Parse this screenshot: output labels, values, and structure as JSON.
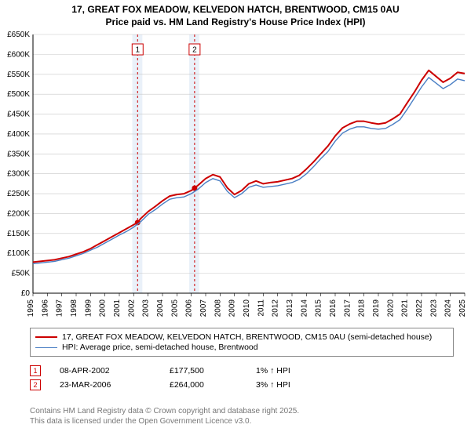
{
  "title_line1": "17, GREAT FOX MEADOW, KELVEDON HATCH, BRENTWOOD, CM15 0AU",
  "title_line2": "Price paid vs. HM Land Registry's House Price Index (HPI)",
  "chart": {
    "type": "line",
    "background_color": "#ffffff",
    "grid_color": "#c8c8c8",
    "axis_color": "#000000",
    "plot_bg_band_color": "#eaf1f9",
    "x": {
      "min": 1995,
      "max": 2025,
      "ticks": [
        1995,
        1996,
        1997,
        1998,
        1999,
        2000,
        2001,
        2002,
        2003,
        2004,
        2005,
        2006,
        2007,
        2008,
        2009,
        2010,
        2011,
        2012,
        2013,
        2014,
        2015,
        2016,
        2017,
        2018,
        2019,
        2020,
        2021,
        2022,
        2023,
        2024,
        2025
      ]
    },
    "y": {
      "min": 0,
      "max": 650000,
      "ticks": [
        0,
        50000,
        100000,
        150000,
        200000,
        250000,
        300000,
        350000,
        400000,
        450000,
        500000,
        550000,
        600000,
        650000
      ],
      "labels": [
        "£0",
        "£50K",
        "£100K",
        "£150K",
        "£200K",
        "£250K",
        "£300K",
        "£350K",
        "£400K",
        "£450K",
        "£500K",
        "£550K",
        "£600K",
        "£650K"
      ]
    },
    "series": [
      {
        "name": "17, GREAT FOX MEADOW, KELVEDON HATCH, BRENTWOOD, CM15 0AU (semi-detached house)",
        "color": "#cc0000",
        "width": 2,
        "points": [
          [
            1995.0,
            78000
          ],
          [
            1995.5,
            80000
          ],
          [
            1996.0,
            82000
          ],
          [
            1996.5,
            84000
          ],
          [
            1997.0,
            88000
          ],
          [
            1997.5,
            92000
          ],
          [
            1998.0,
            98000
          ],
          [
            1998.5,
            104000
          ],
          [
            1999.0,
            112000
          ],
          [
            1999.5,
            122000
          ],
          [
            2000.0,
            132000
          ],
          [
            2000.5,
            142000
          ],
          [
            2001.0,
            152000
          ],
          [
            2001.5,
            162000
          ],
          [
            2002.0,
            172000
          ],
          [
            2002.27,
            177500
          ],
          [
            2002.5,
            188000
          ],
          [
            2003.0,
            205000
          ],
          [
            2003.5,
            218000
          ],
          [
            2004.0,
            232000
          ],
          [
            2004.5,
            244000
          ],
          [
            2005.0,
            248000
          ],
          [
            2005.5,
            250000
          ],
          [
            2006.0,
            258000
          ],
          [
            2006.23,
            264000
          ],
          [
            2006.5,
            272000
          ],
          [
            2007.0,
            288000
          ],
          [
            2007.5,
            298000
          ],
          [
            2008.0,
            292000
          ],
          [
            2008.5,
            265000
          ],
          [
            2009.0,
            248000
          ],
          [
            2009.5,
            258000
          ],
          [
            2010.0,
            275000
          ],
          [
            2010.5,
            282000
          ],
          [
            2011.0,
            275000
          ],
          [
            2011.5,
            278000
          ],
          [
            2012.0,
            280000
          ],
          [
            2012.5,
            284000
          ],
          [
            2013.0,
            288000
          ],
          [
            2013.5,
            296000
          ],
          [
            2014.0,
            312000
          ],
          [
            2014.5,
            330000
          ],
          [
            2015.0,
            350000
          ],
          [
            2015.5,
            370000
          ],
          [
            2016.0,
            395000
          ],
          [
            2016.5,
            415000
          ],
          [
            2017.0,
            425000
          ],
          [
            2017.5,
            432000
          ],
          [
            2018.0,
            432000
          ],
          [
            2018.5,
            428000
          ],
          [
            2019.0,
            425000
          ],
          [
            2019.5,
            428000
          ],
          [
            2020.0,
            438000
          ],
          [
            2020.5,
            450000
          ],
          [
            2021.0,
            478000
          ],
          [
            2021.5,
            505000
          ],
          [
            2022.0,
            535000
          ],
          [
            2022.5,
            560000
          ],
          [
            2023.0,
            545000
          ],
          [
            2023.5,
            530000
          ],
          [
            2024.0,
            540000
          ],
          [
            2024.5,
            555000
          ],
          [
            2025.0,
            552000
          ]
        ]
      },
      {
        "name": "HPI: Average price, semi-detached house, Brentwood",
        "color": "#4a7fc4",
        "width": 1.4,
        "points": [
          [
            1995.0,
            74000
          ],
          [
            1995.5,
            76000
          ],
          [
            1996.0,
            78000
          ],
          [
            1996.5,
            80000
          ],
          [
            1997.0,
            84000
          ],
          [
            1997.5,
            88000
          ],
          [
            1998.0,
            94000
          ],
          [
            1998.5,
            100000
          ],
          [
            1999.0,
            108000
          ],
          [
            1999.5,
            116000
          ],
          [
            2000.0,
            126000
          ],
          [
            2000.5,
            136000
          ],
          [
            2001.0,
            146000
          ],
          [
            2001.5,
            155000
          ],
          [
            2002.0,
            166000
          ],
          [
            2002.5,
            180000
          ],
          [
            2003.0,
            198000
          ],
          [
            2003.5,
            210000
          ],
          [
            2004.0,
            224000
          ],
          [
            2004.5,
            236000
          ],
          [
            2005.0,
            240000
          ],
          [
            2005.5,
            242000
          ],
          [
            2006.0,
            250000
          ],
          [
            2006.5,
            262000
          ],
          [
            2007.0,
            278000
          ],
          [
            2007.5,
            288000
          ],
          [
            2008.0,
            282000
          ],
          [
            2008.5,
            256000
          ],
          [
            2009.0,
            240000
          ],
          [
            2009.5,
            250000
          ],
          [
            2010.0,
            266000
          ],
          [
            2010.5,
            272000
          ],
          [
            2011.0,
            266000
          ],
          [
            2011.5,
            268000
          ],
          [
            2012.0,
            270000
          ],
          [
            2012.5,
            274000
          ],
          [
            2013.0,
            278000
          ],
          [
            2013.5,
            286000
          ],
          [
            2014.0,
            300000
          ],
          [
            2014.5,
            318000
          ],
          [
            2015.0,
            338000
          ],
          [
            2015.5,
            356000
          ],
          [
            2016.0,
            382000
          ],
          [
            2016.5,
            402000
          ],
          [
            2017.0,
            412000
          ],
          [
            2017.5,
            418000
          ],
          [
            2018.0,
            418000
          ],
          [
            2018.5,
            414000
          ],
          [
            2019.0,
            412000
          ],
          [
            2019.5,
            414000
          ],
          [
            2020.0,
            424000
          ],
          [
            2020.5,
            436000
          ],
          [
            2021.0,
            462000
          ],
          [
            2021.5,
            490000
          ],
          [
            2022.0,
            518000
          ],
          [
            2022.5,
            542000
          ],
          [
            2023.0,
            528000
          ],
          [
            2023.5,
            514000
          ],
          [
            2024.0,
            524000
          ],
          [
            2024.5,
            538000
          ],
          [
            2025.0,
            534000
          ]
        ]
      }
    ],
    "event_bands": [
      {
        "start": 2001.9,
        "end": 2002.6
      },
      {
        "start": 2005.85,
        "end": 2006.55
      }
    ],
    "event_lines": [
      {
        "x": 2002.27,
        "color": "#cc0000",
        "dash": "3,3",
        "label": "1",
        "dot_y": 177500
      },
      {
        "x": 2006.23,
        "color": "#cc0000",
        "dash": "3,3",
        "label": "2",
        "dot_y": 264000
      }
    ]
  },
  "legend": {
    "rows": [
      {
        "color": "#cc0000",
        "width": 2,
        "text": "17, GREAT FOX MEADOW, KELVEDON HATCH, BRENTWOOD, CM15 0AU (semi-detached house)"
      },
      {
        "color": "#4a7fc4",
        "width": 1.4,
        "text": "HPI: Average price, semi-detached house, Brentwood"
      }
    ]
  },
  "markers": [
    {
      "n": "1",
      "color": "#cc0000",
      "date": "08-APR-2002",
      "price": "£177,500",
      "delta": "1% ↑ HPI"
    },
    {
      "n": "2",
      "color": "#cc0000",
      "date": "23-MAR-2006",
      "price": "£264,000",
      "delta": "3% ↑ HPI"
    }
  ],
  "footer_line1": "Contains HM Land Registry data © Crown copyright and database right 2025.",
  "footer_line2": "This data is licensed under the Open Government Licence v3.0."
}
